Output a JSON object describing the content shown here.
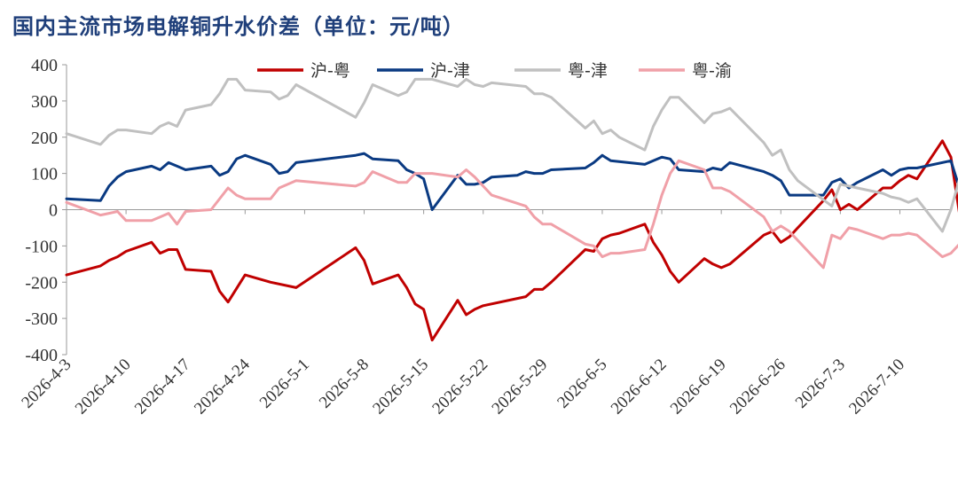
{
  "chart_data": {
    "type": "line",
    "title": "国内主流市场电解铜升水价差（单位：元/吨）",
    "xlabel": "",
    "ylabel": "",
    "ylim": [
      -400,
      400
    ],
    "yticks": [
      -400,
      -300,
      -200,
      -100,
      0,
      100,
      200,
      300,
      400
    ],
    "xlim": [
      "2026-4-3",
      "2026-7-16"
    ],
    "xticks": [
      "2026-4-3",
      "2026-4-10",
      "2026-4-17",
      "2026-4-24",
      "2026-5-1",
      "2026-5-8",
      "2026-5-15",
      "2026-5-22",
      "2026-5-29",
      "2026-6-5",
      "2026-6-12",
      "2026-6-19",
      "2026-6-26",
      "2026-7-3",
      "2026-7-10"
    ],
    "grid": false,
    "legend_position": "top",
    "series": [
      {
        "name": "沪-粤",
        "color": "#c00000",
        "points": [
          [
            "2026-4-3",
            -180
          ],
          [
            "2026-4-7",
            -155
          ],
          [
            "2026-4-8",
            -140
          ],
          [
            "2026-4-9",
            -130
          ],
          [
            "2026-4-10",
            -115
          ],
          [
            "2026-4-13",
            -90
          ],
          [
            "2026-4-14",
            -120
          ],
          [
            "2026-4-15",
            -110
          ],
          [
            "2026-4-16",
            -110
          ],
          [
            "2026-4-17",
            -165
          ],
          [
            "2026-4-20",
            -170
          ],
          [
            "2026-4-21",
            -225
          ],
          [
            "2026-4-22",
            -255
          ],
          [
            "2026-4-24",
            -180
          ],
          [
            "2026-4-27",
            -200
          ],
          [
            "2026-4-30",
            -215
          ],
          [
            "2026-5-7",
            -105
          ],
          [
            "2026-5-8",
            -140
          ],
          [
            "2026-5-9",
            -205
          ],
          [
            "2026-5-12",
            -180
          ],
          [
            "2026-5-13",
            -215
          ],
          [
            "2026-5-14",
            -260
          ],
          [
            "2026-5-15",
            -275
          ],
          [
            "2026-5-16",
            -360
          ],
          [
            "2026-5-19",
            -250
          ],
          [
            "2026-5-20",
            -290
          ],
          [
            "2026-5-21",
            -275
          ],
          [
            "2026-5-22",
            -265
          ],
          [
            "2026-5-27",
            -240
          ],
          [
            "2026-5-28",
            -220
          ],
          [
            "2026-5-29",
            -220
          ],
          [
            "2026-5-30",
            -200
          ],
          [
            "2026-6-3",
            -110
          ],
          [
            "2026-6-4",
            -115
          ],
          [
            "2026-6-5",
            -80
          ],
          [
            "2026-6-6",
            -70
          ],
          [
            "2026-6-7",
            -65
          ],
          [
            "2026-6-10",
            -40
          ],
          [
            "2026-6-11",
            -90
          ],
          [
            "2026-6-12",
            -125
          ],
          [
            "2026-6-13",
            -170
          ],
          [
            "2026-6-14",
            -200
          ],
          [
            "2026-6-17",
            -135
          ],
          [
            "2026-6-18",
            -150
          ],
          [
            "2026-6-19",
            -160
          ],
          [
            "2026-6-20",
            -150
          ],
          [
            "2026-6-24",
            -70
          ],
          [
            "2026-6-25",
            -60
          ],
          [
            "2026-6-26",
            -90
          ],
          [
            "2026-6-27",
            -75
          ],
          [
            "2026-6-28",
            -50
          ],
          [
            "2026-7-1",
            25
          ],
          [
            "2026-7-2",
            55
          ],
          [
            "2026-7-3",
            0
          ],
          [
            "2026-7-4",
            15
          ],
          [
            "2026-7-5",
            0
          ],
          [
            "2026-7-8",
            60
          ],
          [
            "2026-7-9",
            60
          ],
          [
            "2026-7-10",
            80
          ],
          [
            "2026-7-11",
            95
          ],
          [
            "2026-7-12",
            85
          ],
          [
            "2026-7-15",
            190
          ],
          [
            "2026-7-16",
            145
          ],
          [
            "2026-7-17",
            -10
          ]
        ]
      },
      {
        "name": "沪-津",
        "color": "#0a3a82",
        "points": [
          [
            "2026-4-3",
            30
          ],
          [
            "2026-4-7",
            25
          ],
          [
            "2026-4-8",
            65
          ],
          [
            "2026-4-9",
            90
          ],
          [
            "2026-4-10",
            105
          ],
          [
            "2026-4-13",
            120
          ],
          [
            "2026-4-14",
            110
          ],
          [
            "2026-4-15",
            130
          ],
          [
            "2026-4-16",
            120
          ],
          [
            "2026-4-17",
            110
          ],
          [
            "2026-4-20",
            120
          ],
          [
            "2026-4-21",
            95
          ],
          [
            "2026-4-22",
            105
          ],
          [
            "2026-4-23",
            140
          ],
          [
            "2026-4-24",
            150
          ],
          [
            "2026-4-27",
            125
          ],
          [
            "2026-4-28",
            100
          ],
          [
            "2026-4-29",
            105
          ],
          [
            "2026-4-30",
            130
          ],
          [
            "2026-5-7",
            150
          ],
          [
            "2026-5-8",
            155
          ],
          [
            "2026-5-9",
            140
          ],
          [
            "2026-5-12",
            135
          ],
          [
            "2026-5-13",
            110
          ],
          [
            "2026-5-14",
            100
          ],
          [
            "2026-5-15",
            85
          ],
          [
            "2026-5-16",
            0
          ],
          [
            "2026-5-19",
            95
          ],
          [
            "2026-5-20",
            70
          ],
          [
            "2026-5-21",
            70
          ],
          [
            "2026-5-22",
            75
          ],
          [
            "2026-5-23",
            90
          ],
          [
            "2026-5-26",
            95
          ],
          [
            "2026-5-27",
            105
          ],
          [
            "2026-5-28",
            100
          ],
          [
            "2026-5-29",
            100
          ],
          [
            "2026-5-30",
            110
          ],
          [
            "2026-6-3",
            115
          ],
          [
            "2026-6-4",
            130
          ],
          [
            "2026-6-5",
            150
          ],
          [
            "2026-6-6",
            135
          ],
          [
            "2026-6-10",
            125
          ],
          [
            "2026-6-11",
            135
          ],
          [
            "2026-6-12",
            145
          ],
          [
            "2026-6-13",
            140
          ],
          [
            "2026-6-14",
            110
          ],
          [
            "2026-6-17",
            105
          ],
          [
            "2026-6-18",
            115
          ],
          [
            "2026-6-19",
            110
          ],
          [
            "2026-6-20",
            130
          ],
          [
            "2026-6-24",
            105
          ],
          [
            "2026-6-25",
            95
          ],
          [
            "2026-6-26",
            80
          ],
          [
            "2026-6-27",
            40
          ],
          [
            "2026-7-1",
            40
          ],
          [
            "2026-7-2",
            75
          ],
          [
            "2026-7-3",
            85
          ],
          [
            "2026-7-4",
            60
          ],
          [
            "2026-7-5",
            75
          ],
          [
            "2026-7-8",
            110
          ],
          [
            "2026-7-9",
            95
          ],
          [
            "2026-7-10",
            110
          ],
          [
            "2026-7-11",
            115
          ],
          [
            "2026-7-12",
            115
          ],
          [
            "2026-7-16",
            135
          ],
          [
            "2026-7-17",
            60
          ]
        ]
      },
      {
        "name": "粤-津",
        "color": "#c0c0c0",
        "points": [
          [
            "2026-4-3",
            210
          ],
          [
            "2026-4-7",
            180
          ],
          [
            "2026-4-8",
            205
          ],
          [
            "2026-4-9",
            220
          ],
          [
            "2026-4-10",
            220
          ],
          [
            "2026-4-13",
            210
          ],
          [
            "2026-4-14",
            230
          ],
          [
            "2026-4-15",
            240
          ],
          [
            "2026-4-16",
            230
          ],
          [
            "2026-4-17",
            275
          ],
          [
            "2026-4-20",
            290
          ],
          [
            "2026-4-21",
            320
          ],
          [
            "2026-4-22",
            360
          ],
          [
            "2026-4-23",
            360
          ],
          [
            "2026-4-24",
            330
          ],
          [
            "2026-4-27",
            325
          ],
          [
            "2026-4-28",
            305
          ],
          [
            "2026-4-29",
            315
          ],
          [
            "2026-4-30",
            345
          ],
          [
            "2026-5-7",
            255
          ],
          [
            "2026-5-8",
            295
          ],
          [
            "2026-5-9",
            345
          ],
          [
            "2026-5-12",
            315
          ],
          [
            "2026-5-13",
            325
          ],
          [
            "2026-5-14",
            360
          ],
          [
            "2026-5-16",
            360
          ],
          [
            "2026-5-19",
            340
          ],
          [
            "2026-5-20",
            360
          ],
          [
            "2026-5-21",
            345
          ],
          [
            "2026-5-22",
            340
          ],
          [
            "2026-5-23",
            350
          ],
          [
            "2026-5-27",
            340
          ],
          [
            "2026-5-28",
            320
          ],
          [
            "2026-5-29",
            320
          ],
          [
            "2026-5-30",
            310
          ],
          [
            "2026-6-3",
            225
          ],
          [
            "2026-6-4",
            245
          ],
          [
            "2026-6-5",
            210
          ],
          [
            "2026-6-6",
            220
          ],
          [
            "2026-6-7",
            200
          ],
          [
            "2026-6-10",
            165
          ],
          [
            "2026-6-11",
            230
          ],
          [
            "2026-6-12",
            275
          ],
          [
            "2026-6-13",
            310
          ],
          [
            "2026-6-14",
            310
          ],
          [
            "2026-6-17",
            240
          ],
          [
            "2026-6-18",
            265
          ],
          [
            "2026-6-19",
            270
          ],
          [
            "2026-6-20",
            280
          ],
          [
            "2026-6-24",
            185
          ],
          [
            "2026-6-25",
            150
          ],
          [
            "2026-6-26",
            165
          ],
          [
            "2026-6-27",
            110
          ],
          [
            "2026-6-28",
            80
          ],
          [
            "2026-7-2",
            10
          ],
          [
            "2026-7-3",
            70
          ],
          [
            "2026-7-4",
            65
          ],
          [
            "2026-7-5",
            60
          ],
          [
            "2026-7-8",
            45
          ],
          [
            "2026-7-9",
            35
          ],
          [
            "2026-7-10",
            30
          ],
          [
            "2026-7-11",
            20
          ],
          [
            "2026-7-12",
            30
          ],
          [
            "2026-7-15",
            -60
          ],
          [
            "2026-7-16",
            0
          ],
          [
            "2026-7-17",
            85
          ]
        ]
      },
      {
        "name": "粤-渝",
        "color": "#f0a0a8",
        "points": [
          [
            "2026-4-3",
            20
          ],
          [
            "2026-4-7",
            -15
          ],
          [
            "2026-4-8",
            -10
          ],
          [
            "2026-4-9",
            -5
          ],
          [
            "2026-4-10",
            -30
          ],
          [
            "2026-4-13",
            -30
          ],
          [
            "2026-4-14",
            -20
          ],
          [
            "2026-4-15",
            -10
          ],
          [
            "2026-4-16",
            -40
          ],
          [
            "2026-4-17",
            -5
          ],
          [
            "2026-4-20",
            0
          ],
          [
            "2026-4-22",
            60
          ],
          [
            "2026-4-23",
            40
          ],
          [
            "2026-4-24",
            30
          ],
          [
            "2026-4-27",
            30
          ],
          [
            "2026-4-28",
            60
          ],
          [
            "2026-4-29",
            70
          ],
          [
            "2026-4-30",
            80
          ],
          [
            "2026-5-7",
            65
          ],
          [
            "2026-5-8",
            75
          ],
          [
            "2026-5-9",
            105
          ],
          [
            "2026-5-12",
            75
          ],
          [
            "2026-5-13",
            75
          ],
          [
            "2026-5-14",
            100
          ],
          [
            "2026-5-16",
            100
          ],
          [
            "2026-5-19",
            90
          ],
          [
            "2026-5-20",
            110
          ],
          [
            "2026-5-21",
            90
          ],
          [
            "2026-5-22",
            65
          ],
          [
            "2026-5-23",
            40
          ],
          [
            "2026-5-27",
            10
          ],
          [
            "2026-5-28",
            -20
          ],
          [
            "2026-5-29",
            -40
          ],
          [
            "2026-5-30",
            -40
          ],
          [
            "2026-6-3",
            -95
          ],
          [
            "2026-6-4",
            -100
          ],
          [
            "2026-6-5",
            -130
          ],
          [
            "2026-6-6",
            -120
          ],
          [
            "2026-6-7",
            -120
          ],
          [
            "2026-6-10",
            -110
          ],
          [
            "2026-6-11",
            -40
          ],
          [
            "2026-6-12",
            40
          ],
          [
            "2026-6-13",
            100
          ],
          [
            "2026-6-14",
            135
          ],
          [
            "2026-6-17",
            110
          ],
          [
            "2026-6-18",
            60
          ],
          [
            "2026-6-19",
            60
          ],
          [
            "2026-6-20",
            50
          ],
          [
            "2026-6-24",
            -20
          ],
          [
            "2026-6-25",
            -60
          ],
          [
            "2026-6-26",
            -45
          ],
          [
            "2026-6-27",
            -60
          ],
          [
            "2026-7-1",
            -160
          ],
          [
            "2026-7-2",
            -70
          ],
          [
            "2026-7-3",
            -80
          ],
          [
            "2026-7-4",
            -50
          ],
          [
            "2026-7-5",
            -55
          ],
          [
            "2026-7-8",
            -80
          ],
          [
            "2026-7-9",
            -70
          ],
          [
            "2026-7-10",
            -70
          ],
          [
            "2026-7-11",
            -65
          ],
          [
            "2026-7-12",
            -70
          ],
          [
            "2026-7-15",
            -130
          ],
          [
            "2026-7-16",
            -120
          ],
          [
            "2026-7-17",
            -95
          ]
        ]
      }
    ]
  }
}
